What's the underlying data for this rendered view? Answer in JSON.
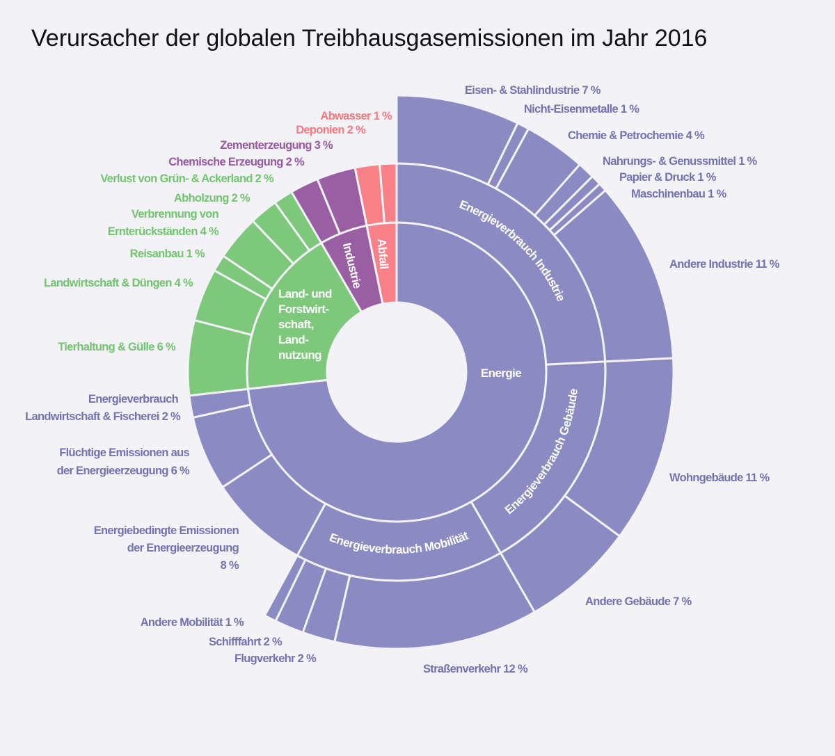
{
  "chart_data": {
    "type": "sunburst",
    "title": "Verursacher der globalen Treibhausgasemissionen im Jahr 2016",
    "unit": "%",
    "categories": [
      {
        "name": "Energie",
        "color": "#8c8ac2",
        "children": [
          {
            "name": "Energieverbrauch Industrie",
            "children": [
              {
                "label": "Eisen- & Stahlindustrie 7 %",
                "value": 7.2
              },
              {
                "label": "Nicht-Eisenmetalle 1 %",
                "value": 0.7
              },
              {
                "label": "Chemie & Petrochemie 4 %",
                "value": 3.6
              },
              {
                "label": "Nahrungs-  & Genussmittel 1 %",
                "value": 1.0
              },
              {
                "label": "Papier & Druck 1 %",
                "value": 0.6
              },
              {
                "label": "Maschinenbau 1 %",
                "value": 0.5
              },
              {
                "label": "Andere Industrie 11 %",
                "value": 10.6
              }
            ]
          },
          {
            "name": "Energieverbrauch Gebäude",
            "children": [
              {
                "label": "Wohngebäude 11 %",
                "value": 10.9
              },
              {
                "label": "Andere Gebäude 7 %",
                "value": 6.6
              }
            ]
          },
          {
            "name": "Energieverbrauch Mobilität",
            "children": [
              {
                "label": "Straßenverkehr 12 %",
                "value": 11.9
              },
              {
                "label": "Flugverkehr 2 %",
                "value": 1.9
              },
              {
                "label": "Schifffahrt 2 %",
                "value": 1.7
              },
              {
                "label": "Andere Mobilität 1 %",
                "value": 0.7
              }
            ]
          },
          {
            "label_lines": [
              "Energiebedingte Emissionen",
              "der Energieerzeugung",
              "8 %"
            ],
            "value": 7.8
          },
          {
            "label_lines": [
              "Flüchtige Emissionen  aus",
              "der Energieerzeugung  6 %"
            ],
            "value": 5.8
          },
          {
            "label_lines": [
              "Energieverbrauch",
              "Landwirtschaft & Fischerei 2 %"
            ],
            "value": 1.7
          }
        ]
      },
      {
        "name_lines": [
          "Land- und",
          "Forstwirt-",
          "schaft,",
          "Land-",
          "nutzung"
        ],
        "color": "#7dc87b",
        "children": [
          {
            "label": "Tierhaltung & Gülle 6 %",
            "value": 5.8
          },
          {
            "label": "Landwirtschaft & Düngen 4 %",
            "value": 4.1
          },
          {
            "label": "Reisanbau 1 %",
            "value": 1.3
          },
          {
            "label_lines": [
              "Verbrennung von",
              "Ernterückständen 4 %"
            ],
            "value": 3.5
          },
          {
            "label": "Abholzung 2 %",
            "value": 2.2
          },
          {
            "label": "Verlust von Grün- & Ackerland 2 %",
            "value": 1.5
          }
        ]
      },
      {
        "name": "Industrie",
        "color": "#9a5ea3",
        "children": [
          {
            "label": "Chemische Erzeugung 2 %",
            "value": 2.2
          },
          {
            "label": "Zementerzeugung 3 %",
            "value": 3.0
          }
        ]
      },
      {
        "name": "Abfall",
        "color": "#f88087",
        "children": [
          {
            "label": "Deponien 2 %",
            "value": 1.9
          },
          {
            "label": "Abwasser 1 %",
            "value": 1.3
          }
        ]
      }
    ]
  }
}
